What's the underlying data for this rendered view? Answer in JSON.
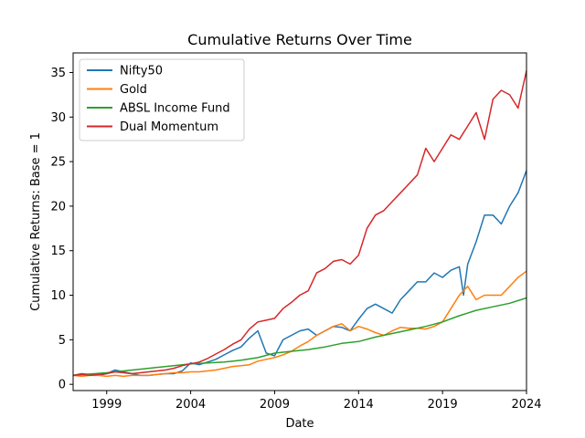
{
  "chart_data": {
    "type": "line",
    "title": "Cumulative Returns Over Time",
    "xlabel": "Date",
    "ylabel": "Cumulative Returns: Base = 1",
    "xlim": [
      1997.0,
      2024.0
    ],
    "ylim": [
      -0.7,
      37.2
    ],
    "xticks": [
      1999,
      2004,
      2009,
      2014,
      2019,
      2024
    ],
    "yticks": [
      0,
      5,
      10,
      15,
      20,
      25,
      30,
      35
    ],
    "grid": false,
    "legend_position": "top-left",
    "series": [
      {
        "name": "Nifty50",
        "color": "#1f77b4",
        "x": [
          1997.0,
          1997.5,
          1998.0,
          1998.5,
          1999.0,
          1999.5,
          2000.0,
          2000.5,
          2001.0,
          2001.5,
          2002.0,
          2002.5,
          2003.0,
          2003.5,
          2004.0,
          2004.5,
          2005.0,
          2005.5,
          2006.0,
          2006.5,
          2007.0,
          2007.5,
          2008.0,
          2008.5,
          2009.0,
          2009.5,
          2010.0,
          2010.5,
          2011.0,
          2011.5,
          2012.0,
          2012.5,
          2013.0,
          2013.5,
          2014.0,
          2014.5,
          2015.0,
          2015.5,
          2016.0,
          2016.5,
          2017.0,
          2017.5,
          2018.0,
          2018.5,
          2019.0,
          2019.5,
          2020.0,
          2020.25,
          2020.5,
          2021.0,
          2021.5,
          2022.0,
          2022.5,
          2023.0,
          2023.5,
          2024.0
        ],
        "y": [
          1.0,
          1.2,
          1.1,
          1.0,
          1.2,
          1.6,
          1.4,
          1.2,
          1.0,
          1.0,
          1.1,
          1.2,
          1.2,
          1.5,
          2.4,
          2.2,
          2.5,
          2.8,
          3.3,
          3.8,
          4.2,
          5.2,
          6.0,
          3.5,
          3.2,
          5.0,
          5.5,
          6.0,
          6.2,
          5.5,
          6.0,
          6.5,
          6.4,
          6.0,
          7.3,
          8.5,
          9.0,
          8.5,
          8.0,
          9.5,
          10.5,
          11.5,
          11.5,
          12.5,
          12.0,
          12.8,
          13.2,
          10.0,
          13.5,
          16.0,
          19.0,
          19.0,
          18.0,
          20.0,
          21.5,
          24.0
        ]
      },
      {
        "name": "Gold",
        "color": "#ff7f0e",
        "x": [
          1997.0,
          1997.5,
          1998.0,
          1998.5,
          1999.0,
          1999.5,
          2000.0,
          2000.5,
          2001.0,
          2001.5,
          2002.0,
          2002.5,
          2003.0,
          2003.5,
          2004.0,
          2004.5,
          2005.0,
          2005.5,
          2006.0,
          2006.5,
          2007.0,
          2007.5,
          2008.0,
          2008.5,
          2009.0,
          2009.5,
          2010.0,
          2010.5,
          2011.0,
          2011.5,
          2012.0,
          2012.5,
          2013.0,
          2013.5,
          2014.0,
          2014.5,
          2015.0,
          2015.5,
          2016.0,
          2016.5,
          2017.0,
          2017.5,
          2018.0,
          2018.5,
          2019.0,
          2019.5,
          2020.0,
          2020.5,
          2021.0,
          2021.5,
          2022.0,
          2022.5,
          2023.0,
          2023.5,
          2024.0
        ],
        "y": [
          1.0,
          0.9,
          1.0,
          1.0,
          0.9,
          1.0,
          0.9,
          1.0,
          1.0,
          1.0,
          1.1,
          1.2,
          1.3,
          1.3,
          1.4,
          1.4,
          1.5,
          1.6,
          1.8,
          2.0,
          2.1,
          2.2,
          2.6,
          2.8,
          3.0,
          3.3,
          3.7,
          4.3,
          4.8,
          5.5,
          6.0,
          6.5,
          6.8,
          6.0,
          6.5,
          6.2,
          5.8,
          5.5,
          6.0,
          6.4,
          6.3,
          6.3,
          6.2,
          6.5,
          7.0,
          8.5,
          10.0,
          11.0,
          9.5,
          10.0,
          10.0,
          10.0,
          11.0,
          12.0,
          12.7
        ]
      },
      {
        "name": "ABSL Income Fund",
        "color": "#2ca02c",
        "x": [
          1997.0,
          1998.0,
          1999.0,
          2000.0,
          2001.0,
          2002.0,
          2003.0,
          2004.0,
          2005.0,
          2006.0,
          2007.0,
          2008.0,
          2009.0,
          2010.0,
          2011.0,
          2012.0,
          2013.0,
          2014.0,
          2015.0,
          2016.0,
          2017.0,
          2018.0,
          2019.0,
          2020.0,
          2021.0,
          2022.0,
          2023.0,
          2024.0
        ],
        "y": [
          1.0,
          1.15,
          1.3,
          1.5,
          1.7,
          1.9,
          2.1,
          2.3,
          2.4,
          2.5,
          2.7,
          3.0,
          3.5,
          3.7,
          3.9,
          4.2,
          4.6,
          4.8,
          5.3,
          5.7,
          6.1,
          6.5,
          7.0,
          7.7,
          8.3,
          8.7,
          9.1,
          9.7
        ]
      },
      {
        "name": "Dual Momentum",
        "color": "#d62728",
        "x": [
          1997.0,
          1997.5,
          1998.0,
          1998.5,
          1999.0,
          1999.5,
          2000.0,
          2000.5,
          2001.0,
          2001.5,
          2002.0,
          2002.5,
          2003.0,
          2003.5,
          2004.0,
          2004.5,
          2005.0,
          2005.5,
          2006.0,
          2006.5,
          2007.0,
          2007.5,
          2008.0,
          2008.5,
          2009.0,
          2009.5,
          2010.0,
          2010.5,
          2011.0,
          2011.5,
          2012.0,
          2012.5,
          2013.0,
          2013.5,
          2014.0,
          2014.5,
          2015.0,
          2015.5,
          2016.0,
          2016.5,
          2017.0,
          2017.5,
          2018.0,
          2018.5,
          2019.0,
          2019.5,
          2020.0,
          2020.5,
          2021.0,
          2021.5,
          2022.0,
          2022.5,
          2023.0,
          2023.5,
          2024.0
        ],
        "y": [
          1.0,
          1.1,
          1.0,
          1.1,
          1.2,
          1.4,
          1.3,
          1.2,
          1.3,
          1.4,
          1.5,
          1.6,
          1.8,
          2.1,
          2.3,
          2.5,
          2.9,
          3.4,
          3.9,
          4.5,
          5.0,
          6.2,
          7.0,
          7.2,
          7.4,
          8.5,
          9.2,
          10.0,
          10.5,
          12.5,
          13.0,
          13.8,
          14.0,
          13.5,
          14.5,
          17.5,
          19.0,
          19.5,
          20.5,
          21.5,
          22.5,
          23.5,
          26.5,
          25.0,
          26.5,
          28.0,
          27.5,
          29.0,
          30.5,
          27.5,
          32.0,
          33.0,
          32.5,
          31.0,
          35.2
        ]
      }
    ]
  }
}
